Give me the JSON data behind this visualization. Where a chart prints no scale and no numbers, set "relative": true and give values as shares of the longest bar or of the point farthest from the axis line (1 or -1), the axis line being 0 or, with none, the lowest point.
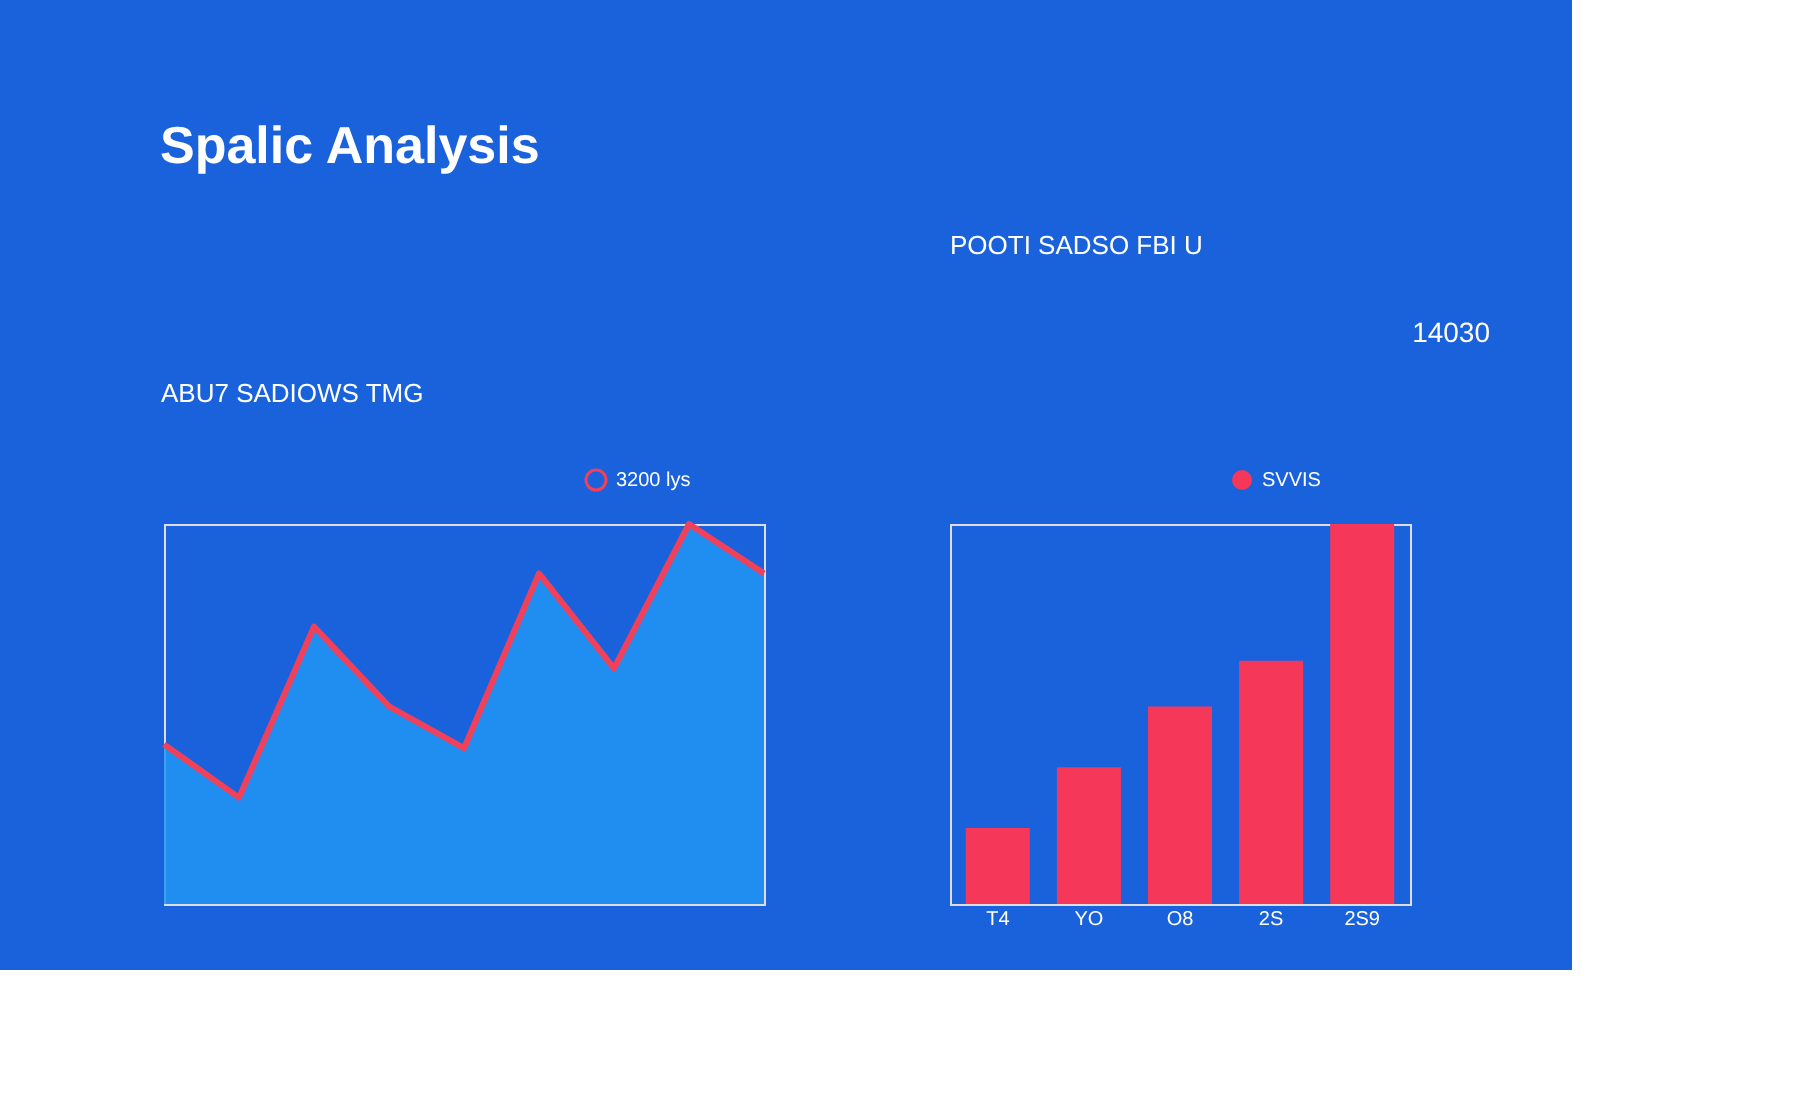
{
  "chart_data": [
    {
      "type": "area",
      "title": "Spalic Analysis",
      "subtitle": "ABU7 SADIOWS TMG",
      "relative": true,
      "legend": "top right",
      "categories": [
        null,
        null,
        null,
        null,
        null,
        null,
        null,
        null,
        null
      ],
      "series": [
        {
          "type": "area",
          "color": "#2196f3",
          "values": [
            0.42,
            0.28,
            0.73,
            0.52,
            0.41,
            0.87,
            0.62,
            1,
            0.87
          ]
        },
        {
          "type": "line",
          "name": "3200 lys",
          "color": "#f0405a",
          "values": [
            0.42,
            0.28,
            0.73,
            0.52,
            0.41,
            0.87,
            0.62,
            1,
            0.87
          ]
        }
      ]
    },
    {
      "type": "bar",
      "subtitle": "POOTI SADSO FBI U",
      "relative": true,
      "legend": "top right",
      "categories": [
        "T4",
        "YO",
        "O8",
        "2S",
        "2S9"
      ],
      "annotations": [
        "14030"
      ],
      "series": [
        {
          "name": "SVVIS",
          "color": "#f5385a",
          "values": [
            0.2,
            0.36,
            0.52,
            0.64,
            1
          ]
        }
      ]
    }
  ]
}
